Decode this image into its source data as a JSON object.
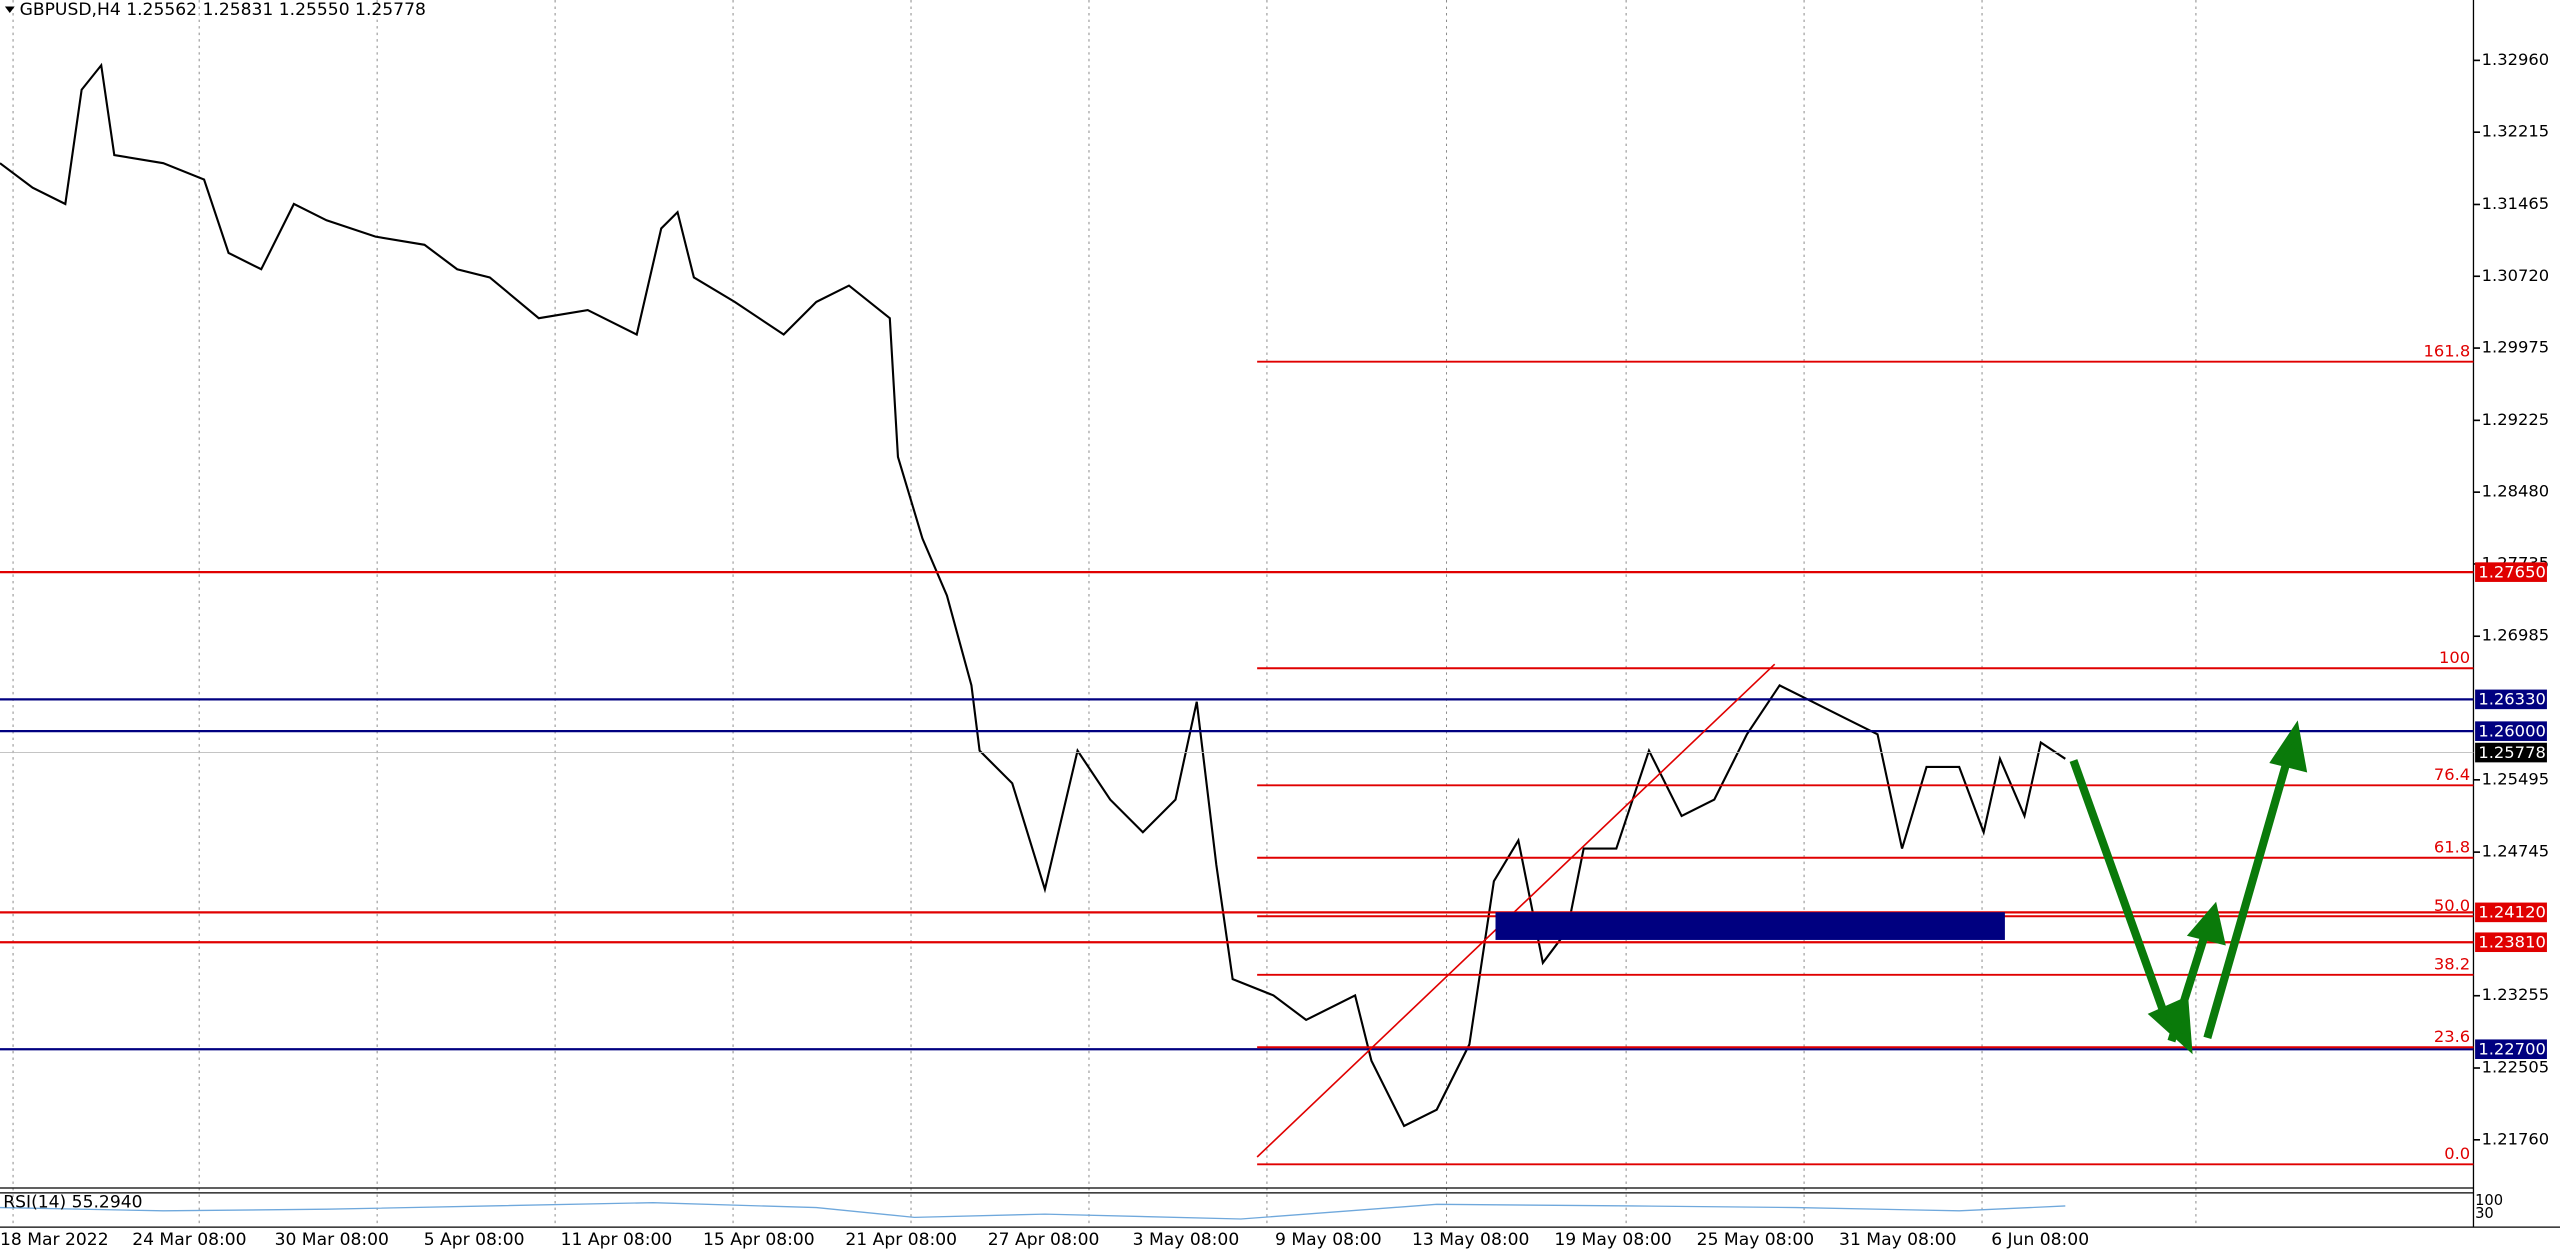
{
  "header": "GBPUSD,H4  1.25562 1.25831 1.25550 1.25778",
  "price_axis": [
    {
      "value": 1.3296,
      "label": "1.32960"
    },
    {
      "value": 1.32215,
      "label": "1.32215"
    },
    {
      "value": 1.31465,
      "label": "1.31465"
    },
    {
      "value": 1.3072,
      "label": "1.30720"
    },
    {
      "value": 1.29975,
      "label": "1.29975"
    },
    {
      "value": 1.29225,
      "label": "1.29225"
    },
    {
      "value": 1.2848,
      "label": "1.28480"
    },
    {
      "value": 1.27735,
      "label": "1.27735"
    },
    {
      "value": 1.26985,
      "label": "1.26985"
    },
    {
      "value": 1.25495,
      "label": "1.25495"
    },
    {
      "value": 1.24745,
      "label": "1.24745"
    },
    {
      "value": 1.23255,
      "label": "1.23255"
    },
    {
      "value": 1.22505,
      "label": "1.22505"
    },
    {
      "value": 1.2176,
      "label": "1.21760"
    }
  ],
  "levels": [
    {
      "value": 1.2765,
      "label": "1.27650",
      "color": "#e00000"
    },
    {
      "value": 1.2633,
      "label": "1.26330",
      "color": "#000080"
    },
    {
      "value": 1.26,
      "label": "1.26000",
      "color": "#000080"
    },
    {
      "value": 1.25778,
      "label": "1.25778",
      "color": "#000000"
    },
    {
      "value": 1.2412,
      "label": "1.24120",
      "color": "#e00000"
    },
    {
      "value": 1.2381,
      "label": "1.23810",
      "color": "#e00000"
    },
    {
      "value": 1.227,
      "label": "1.22700",
      "color": "#000080"
    }
  ],
  "fibonacci": {
    "low": 1.21506,
    "high": 1.26653,
    "levels": [
      {
        "value": 0,
        "label": "0.0"
      },
      23.6,
      38.2,
      {
        "value": 50,
        "label": "50.0"
      },
      61.8,
      76.4,
      100,
      161.8
    ]
  },
  "dates": [
    "18 Mar 2022",
    "24 Mar 08:00",
    "30 Mar 08:00",
    "5 Apr 08:00",
    "11 Apr 08:00",
    "15 Apr 08:00",
    "21 Apr 08:00",
    "27 Apr 08:00",
    "3 May 08:00",
    "9 May 08:00",
    "13 May 08:00",
    "19 May 08:00",
    "25 May 08:00",
    "31 May 08:00",
    "6 Jun 08:00"
  ],
  "rsi": {
    "label": "RSI(14) 55.2940",
    "axis": [
      100,
      30
    ]
  }
}
